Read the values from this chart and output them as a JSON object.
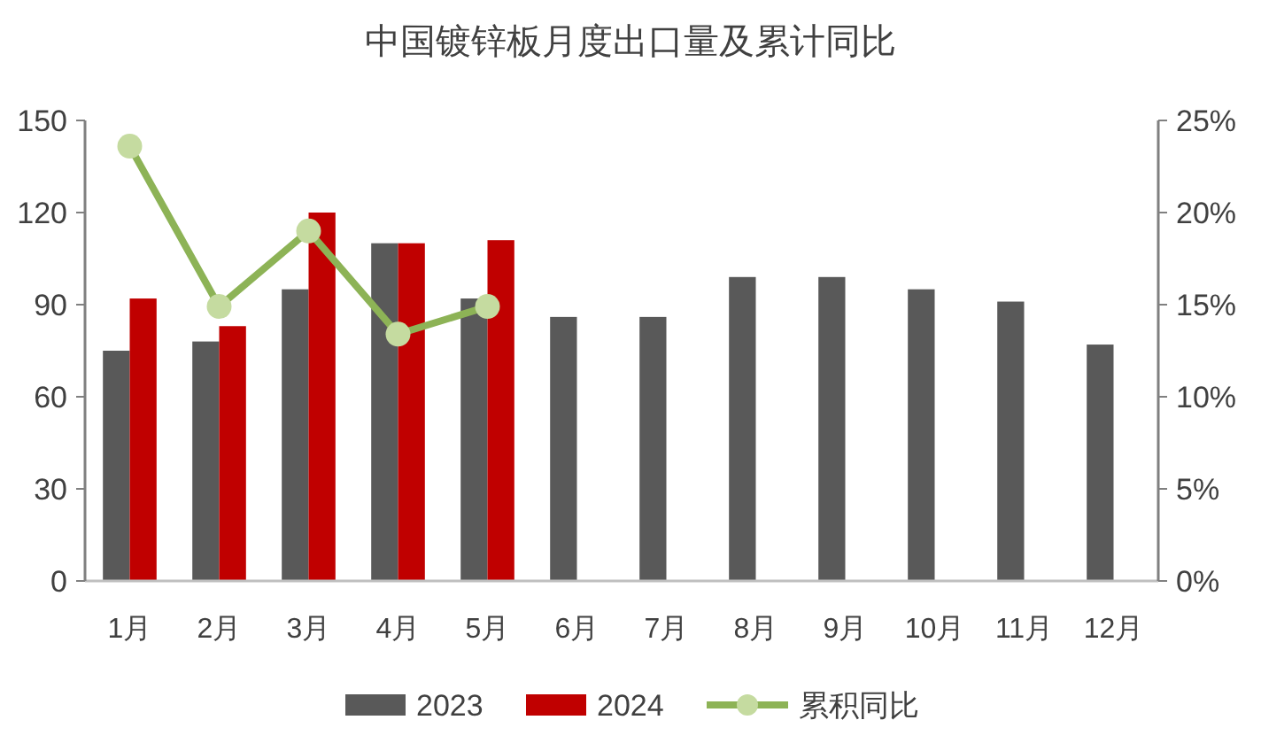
{
  "chart_data": {
    "type": "bar",
    "title": "中国镀锌板月度出口量及累计同比",
    "categories": [
      "1月",
      "2月",
      "3月",
      "4月",
      "5月",
      "6月",
      "7月",
      "8月",
      "9月",
      "10月",
      "11月",
      "12月"
    ],
    "series": [
      {
        "name": "2023",
        "color": "#595959",
        "values": [
          75,
          78,
          95,
          110,
          92,
          86,
          86,
          99,
          99,
          95,
          91,
          77
        ]
      },
      {
        "name": "2024",
        "color": "#c00000",
        "values": [
          92,
          83,
          120,
          110,
          111,
          null,
          null,
          null,
          null,
          null,
          null,
          null
        ]
      },
      {
        "name": "累积同比",
        "type": "line",
        "axis": "y2",
        "color": "#8db356",
        "marker": "circle",
        "values": [
          23.6,
          14.9,
          19.0,
          13.4,
          14.9,
          null,
          null,
          null,
          null,
          null,
          null,
          null
        ]
      }
    ],
    "ylim": [
      0,
      150
    ],
    "yticks": [
      0,
      30,
      60,
      90,
      120,
      150
    ],
    "y2lim": [
      0,
      25
    ],
    "y2ticks": [
      {
        "value": 0,
        "label": "0%"
      },
      {
        "value": 5,
        "label": "5%"
      },
      {
        "value": 10,
        "label": "10%"
      },
      {
        "value": 15,
        "label": "15%"
      },
      {
        "value": 20,
        "label": "20%"
      },
      {
        "value": 25,
        "label": "25%"
      }
    ],
    "grid": false,
    "legend": "bottom"
  }
}
